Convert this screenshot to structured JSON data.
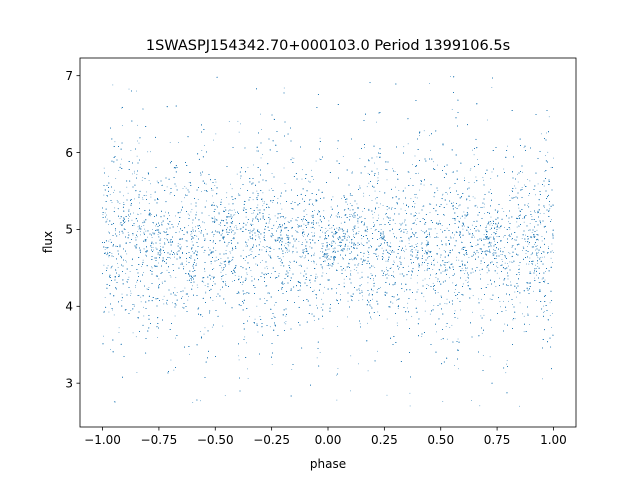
{
  "chart_data": {
    "type": "scatter",
    "title": "1SWASPJ154342.70+000103.0 Period 1399106.5s",
    "xlabel": "phase",
    "ylabel": "flux",
    "xlim": [
      -1.1,
      1.1
    ],
    "ylim": [
      2.43,
      7.23
    ],
    "xticks": [
      -1.0,
      -0.75,
      -0.5,
      -0.25,
      0.0,
      0.25,
      0.5,
      0.75,
      1.0
    ],
    "xtick_labels": [
      "−1.00",
      "−0.75",
      "−0.50",
      "−0.25",
      "0.00",
      "0.25",
      "0.50",
      "0.75",
      "1.00"
    ],
    "yticks": [
      3,
      4,
      5,
      6,
      7
    ],
    "ytick_labels": [
      "3",
      "4",
      "5",
      "6",
      "7"
    ],
    "grid": false,
    "marker_color": "#1f77b4",
    "series": [
      {
        "x_range": [
          -1.0,
          1.0
        ],
        "point_count": 20000,
        "flux_median": 4.8,
        "flux_core_range": [
          4.3,
          5.4
        ],
        "flux_min": 2.7,
        "flux_max": 7.0,
        "points": [
          [
            -0.98,
            4.75
          ],
          [
            -0.9,
            5.1
          ],
          [
            -0.82,
            4.6
          ],
          [
            -0.75,
            4.9
          ],
          [
            -0.7,
            4.4
          ],
          [
            -0.62,
            5.2
          ],
          [
            -0.55,
            4.7
          ],
          [
            -0.48,
            4.85
          ],
          [
            -0.4,
            5.0
          ],
          [
            -0.32,
            4.55
          ],
          [
            -0.25,
            4.95
          ],
          [
            -0.18,
            4.7
          ],
          [
            -0.1,
            5.05
          ],
          [
            -0.02,
            4.65
          ],
          [
            0.05,
            4.9
          ],
          [
            0.12,
            4.8
          ],
          [
            0.2,
            5.15
          ],
          [
            0.28,
            4.5
          ],
          [
            0.35,
            4.95
          ],
          [
            0.42,
            4.75
          ],
          [
            0.5,
            5.0
          ],
          [
            0.58,
            4.6
          ],
          [
            0.65,
            4.9
          ],
          [
            0.72,
            4.8
          ],
          [
            0.8,
            5.1
          ],
          [
            0.88,
            4.55
          ],
          [
            0.95,
            4.85
          ],
          [
            1.0,
            4.7
          ],
          [
            -0.85,
            6.8
          ],
          [
            -0.6,
            2.75
          ],
          [
            -0.3,
            6.5
          ],
          [
            0.1,
            2.9
          ],
          [
            0.45,
            6.9
          ],
          [
            0.85,
            2.7
          ]
        ]
      }
    ]
  }
}
